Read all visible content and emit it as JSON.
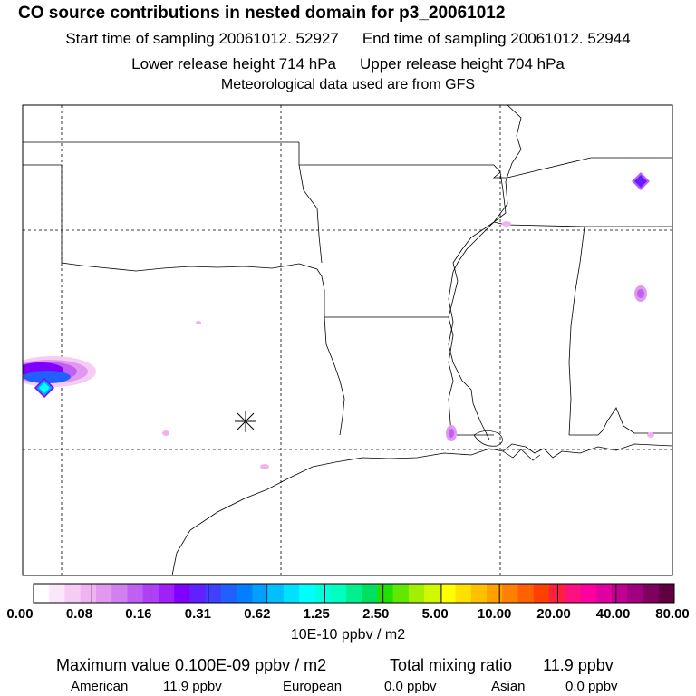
{
  "header": {
    "title": "CO  source contributions in nested domain for p3_20061012",
    "start_label": "Start time of sampling 20061012. 52927",
    "end_label": "End time of sampling 20061012. 52944",
    "lower_label": "Lower release height  714 hPa",
    "upper_label": "Upper release height  704 hPa",
    "met_label": "Meteorological data used are from GFS"
  },
  "map": {
    "receptor_marker": "asterisk-marker",
    "blobs": [
      {
        "name": "west-edge-plume",
        "level": 0.16
      },
      {
        "name": "tennessee-hotspot",
        "level": 0.16
      },
      {
        "name": "alabama-spot",
        "level": 0.12
      },
      {
        "name": "louisiana-spot",
        "level": 0.12
      }
    ]
  },
  "colorbar": {
    "colors": [
      "#ffffff",
      "#fbe6fb",
      "#f6ccf6",
      "#f0b3f0",
      "#e199f0",
      "#d27ff0",
      "#c060f3",
      "#b040f5",
      "#a020f8",
      "#8000ff",
      "#6020ff",
      "#4040ff",
      "#2060ff",
      "#0080ff",
      "#00a0ff",
      "#00c0ff",
      "#00e0ff",
      "#00ffff",
      "#00ffe0",
      "#00ffc0",
      "#00f090",
      "#00e060",
      "#20e000",
      "#60e800",
      "#a0f000",
      "#d0f800",
      "#ffff00",
      "#ffe000",
      "#ffc000",
      "#ffa000",
      "#ff8000",
      "#ff6000",
      "#ff4000",
      "#ff2040",
      "#ff1080",
      "#ff00a0",
      "#e000a0",
      "#c00090",
      "#a00080",
      "#800060",
      "#600040"
    ],
    "ticks": [
      "0.00",
      "0.08",
      "0.16",
      "0.31",
      "0.62",
      "1.25",
      "2.50",
      "5.00",
      "10.00",
      "20.00",
      "40.00",
      "80.00"
    ],
    "units": "10E-10 ppbv / m2"
  },
  "summary": {
    "max_value": "Maximum value  0.100E-09 ppbv / m2",
    "total_label": "Total mixing ratio",
    "total_value": "11.9 ppbv",
    "american_label": "American",
    "american_value": "11.9 ppbv",
    "european_label": "European",
    "european_value": "0.0 ppbv",
    "asian_label": "Asian",
    "asian_value": "0.0 ppbv"
  }
}
